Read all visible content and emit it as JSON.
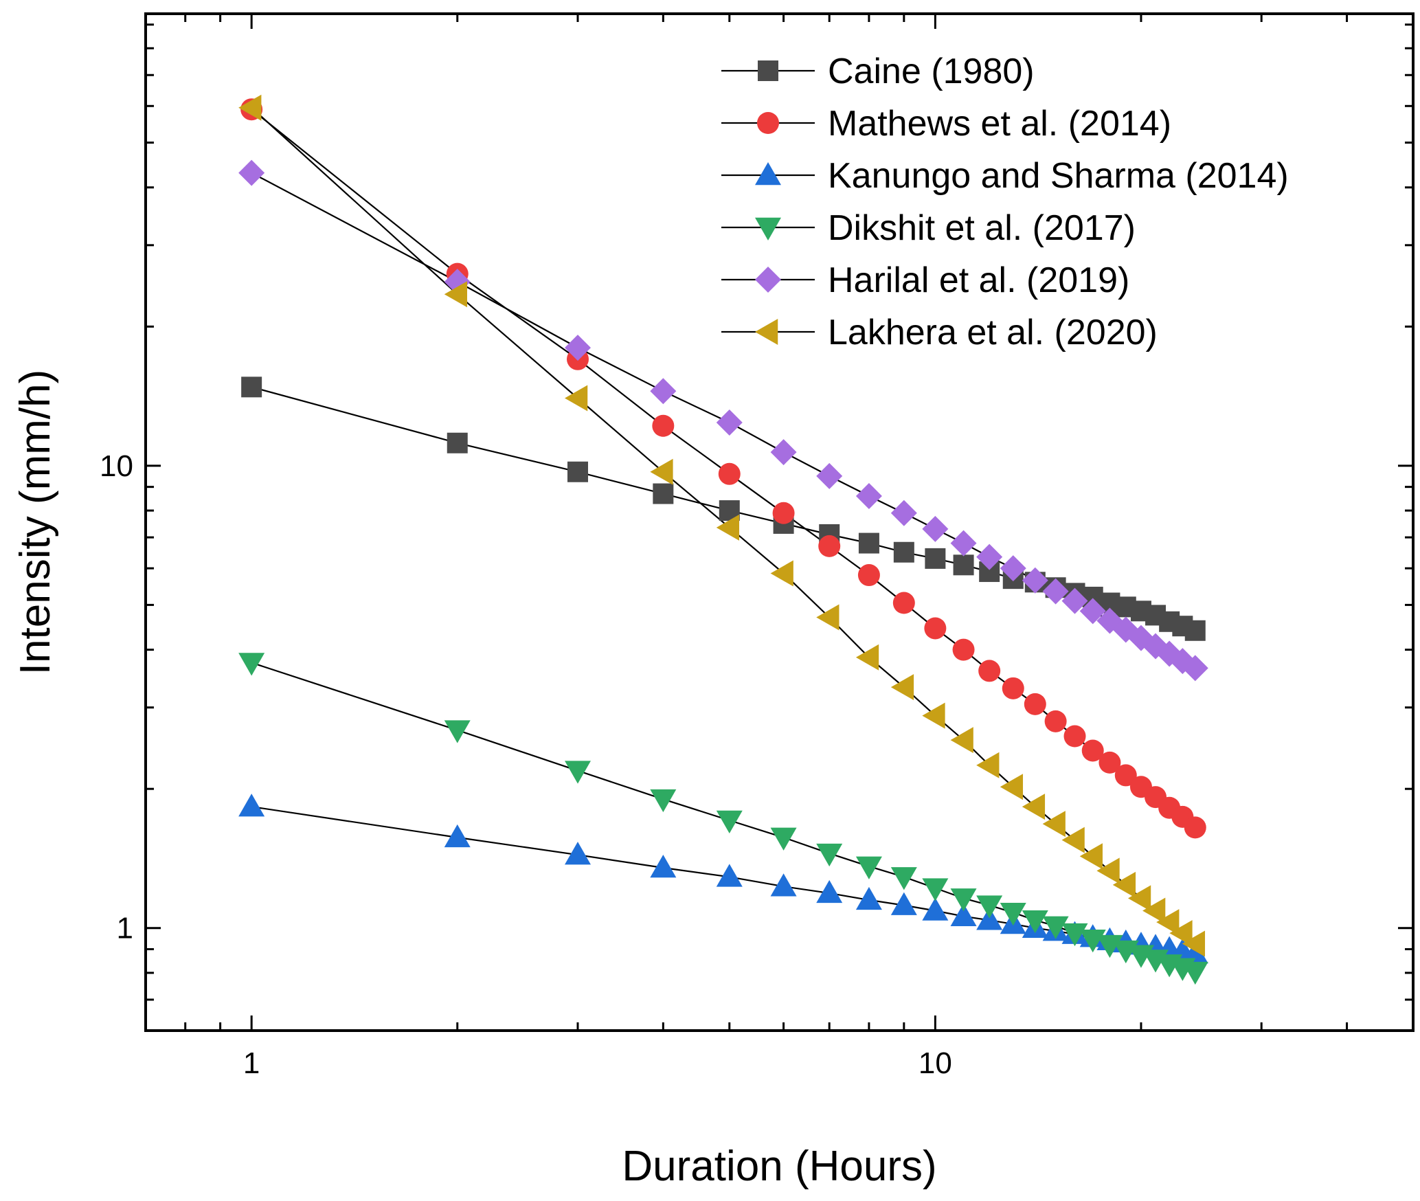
{
  "chart_data": {
    "type": "line",
    "title": "",
    "xlabel": "Duration (Hours)",
    "ylabel": "Intensity (mm/h)",
    "xscale": "log",
    "yscale": "log",
    "xlim": [
      0.7,
      50
    ],
    "ylim": [
      0.6,
      95
    ],
    "x_tick_labels": [
      "1",
      "10"
    ],
    "y_tick_labels": [
      "1",
      "10"
    ],
    "grid": false,
    "legend_position": "top-right",
    "x": [
      1,
      2,
      3,
      4,
      5,
      6,
      7,
      8,
      9,
      10,
      11,
      12,
      13,
      14,
      15,
      16,
      17,
      18,
      19,
      20,
      21,
      22,
      23,
      24
    ],
    "series": [
      {
        "name": "Caine (1980)",
        "marker": "square",
        "color": "#4a4a4a",
        "values": [
          14.8,
          11.2,
          9.7,
          8.7,
          8.0,
          7.5,
          7.1,
          6.8,
          6.5,
          6.3,
          6.1,
          5.9,
          5.7,
          5.6,
          5.45,
          5.3,
          5.2,
          5.05,
          4.95,
          4.85,
          4.75,
          4.6,
          4.5,
          4.4
        ]
      },
      {
        "name": "Mathews et al. (2014)",
        "marker": "circle",
        "color": "#ec3b3b",
        "values": [
          59.0,
          26.0,
          17.0,
          12.2,
          9.6,
          7.9,
          6.7,
          5.8,
          5.05,
          4.45,
          4.0,
          3.6,
          3.3,
          3.05,
          2.8,
          2.6,
          2.42,
          2.28,
          2.14,
          2.02,
          1.92,
          1.82,
          1.74,
          1.65
        ]
      },
      {
        "name": "Kanungo and Sharma (2014)",
        "marker": "triangle-up",
        "color": "#1f6fd8",
        "values": [
          1.83,
          1.57,
          1.44,
          1.35,
          1.29,
          1.23,
          1.19,
          1.15,
          1.12,
          1.09,
          1.06,
          1.04,
          1.02,
          1.0,
          0.985,
          0.97,
          0.955,
          0.94,
          0.93,
          0.92,
          0.91,
          0.9,
          0.89,
          0.88
        ]
      },
      {
        "name": "Dikshit et al. (2017)",
        "marker": "triangle-down",
        "color": "#2eaa62",
        "values": [
          3.75,
          2.68,
          2.19,
          1.9,
          1.71,
          1.57,
          1.45,
          1.36,
          1.29,
          1.22,
          1.16,
          1.12,
          1.08,
          1.04,
          1.01,
          0.975,
          0.945,
          0.92,
          0.895,
          0.875,
          0.855,
          0.835,
          0.82,
          0.805
        ]
      },
      {
        "name": "Harilal et al. (2019)",
        "marker": "diamond",
        "color": "#a66ee0",
        "values": [
          43.0,
          25.0,
          18.0,
          14.5,
          12.4,
          10.7,
          9.5,
          8.6,
          7.9,
          7.3,
          6.8,
          6.35,
          6.0,
          5.65,
          5.35,
          5.1,
          4.85,
          4.62,
          4.42,
          4.24,
          4.07,
          3.92,
          3.78,
          3.65
        ]
      },
      {
        "name": "Lakhera et al. (2020)",
        "marker": "triangle-left",
        "color": "#c8a016",
        "values": [
          59.5,
          23.5,
          14.0,
          9.7,
          7.35,
          5.85,
          4.7,
          3.85,
          3.32,
          2.88,
          2.55,
          2.25,
          2.02,
          1.83,
          1.68,
          1.55,
          1.43,
          1.33,
          1.24,
          1.16,
          1.09,
          1.03,
          0.975,
          0.925
        ]
      }
    ]
  }
}
